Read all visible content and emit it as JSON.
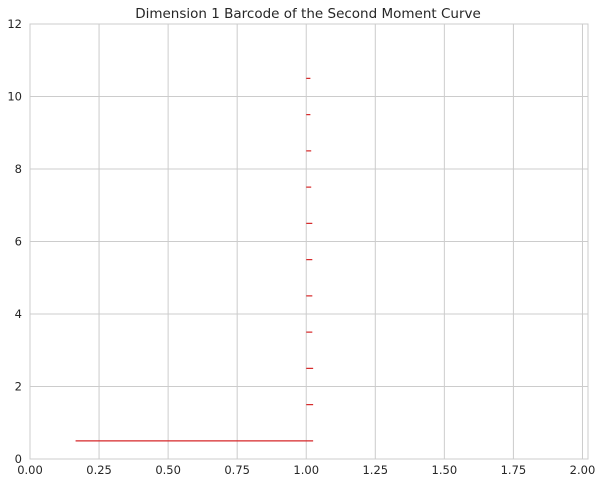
{
  "chart_data": {
    "type": "barcode",
    "title": "Dimension 1 Barcode of the Second Moment Curve",
    "xlabel": "",
    "ylabel": "",
    "xlim": [
      0.0,
      2.02
    ],
    "ylim": [
      0,
      12
    ],
    "grid": true,
    "x_ticks": [
      "0.00",
      "0.25",
      "0.50",
      "0.75",
      "1.00",
      "1.25",
      "1.50",
      "1.75",
      "2.00"
    ],
    "y_ticks": [
      "0",
      "2",
      "4",
      "6",
      "8",
      "10",
      "12"
    ],
    "bar_color": "#d62728",
    "bars": [
      {
        "y": 0.5,
        "birth": 0.165,
        "death": 1.025
      },
      {
        "y": 1.5,
        "birth": 1.0,
        "death": 1.025
      },
      {
        "y": 2.5,
        "birth": 1.0,
        "death": 1.025
      },
      {
        "y": 3.5,
        "birth": 1.0,
        "death": 1.022
      },
      {
        "y": 4.5,
        "birth": 1.0,
        "death": 1.022
      },
      {
        "y": 5.5,
        "birth": 1.0,
        "death": 1.022
      },
      {
        "y": 6.5,
        "birth": 1.0,
        "death": 1.022
      },
      {
        "y": 7.5,
        "birth": 1.0,
        "death": 1.018
      },
      {
        "y": 8.5,
        "birth": 1.0,
        "death": 1.018
      },
      {
        "y": 9.5,
        "birth": 1.0,
        "death": 1.015
      },
      {
        "y": 10.5,
        "birth": 1.0,
        "death": 1.015
      }
    ]
  }
}
